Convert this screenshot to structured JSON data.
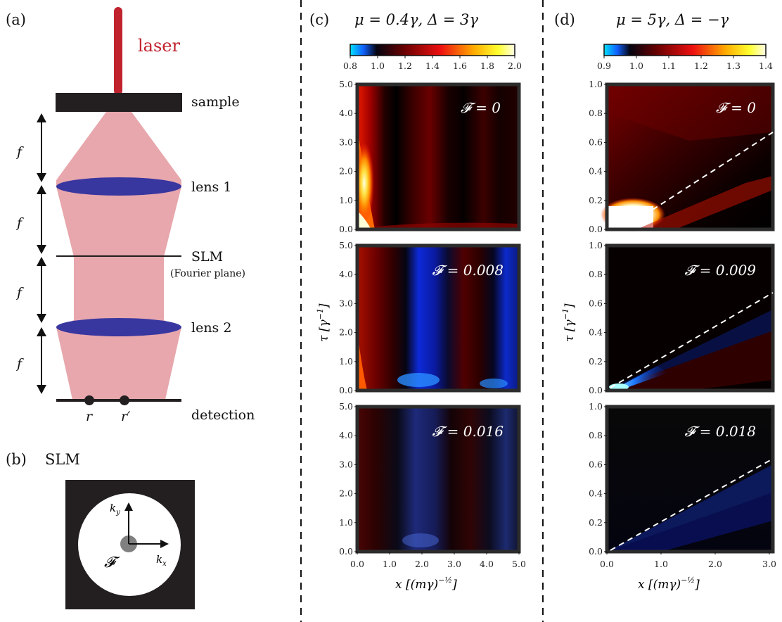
{
  "panel_a": {
    "letter": "(a)",
    "laser_label": "laser",
    "sample_label": "sample",
    "lens1_label": "lens 1",
    "slm_label": "SLM",
    "fourier_label": "(Fourier plane)",
    "lens2_label": "lens 2",
    "detection_label": "detection",
    "focal_label": "f",
    "r_label": "r",
    "rprime_label": "r′",
    "colors": {
      "laser": "#c0222e",
      "beam": "#e7a7ad",
      "lens": "#2e2f9e",
      "plate": "#231f20"
    }
  },
  "panel_b": {
    "letter": "(b)",
    "title": "SLM",
    "ky_label": "k",
    "ky_sub": "y",
    "kx_label": "k",
    "kx_sub": "x",
    "filter_label": "𝓕"
  },
  "panel_c": {
    "letter": "(c)",
    "title": "μ = 0.4γ,  Δ = 3γ",
    "colorbar_ticks": [
      "0.8",
      "1.0",
      "1.2",
      "1.4",
      "1.6",
      "1.8",
      "2.0"
    ],
    "y_ticks": [
      "0.0",
      "1.0",
      "2.0",
      "3.0",
      "4.0",
      "5.0"
    ],
    "x_ticks": [
      "0.0",
      "1.0",
      "2.0",
      "3.0",
      "4.0",
      "5.0"
    ],
    "xlabel": "x [(mγ)",
    "xlabel_exp": "−½",
    "xlabel_close": "]",
    "ylabel": "τ [γ",
    "ylabel_exp": "−1",
    "ylabel_close": "]",
    "panels": [
      "𝓕 = 0",
      "𝓕 = 0.008",
      "𝓕 = 0.016"
    ]
  },
  "panel_d": {
    "letter": "(d)",
    "title": "μ = 5γ,  Δ = −γ",
    "colorbar_ticks": [
      "0.9",
      "1.0",
      "1.1",
      "1.2",
      "1.3",
      "1.4"
    ],
    "y_ticks": [
      "0.0",
      "0.2",
      "0.4",
      "0.6",
      "0.8",
      "1.0"
    ],
    "x_ticks": [
      "0.0",
      "1.0",
      "2.0",
      "3.0"
    ],
    "xlabel": "x [(mγ)",
    "xlabel_exp": "−½",
    "xlabel_close": "]",
    "ylabel": "τ [γ",
    "ylabel_exp": "−1",
    "ylabel_close": "]",
    "panels": [
      "𝓕 = 0",
      "𝓕 = 0.009",
      "𝓕 = 0.018"
    ]
  },
  "chart_data": [
    {
      "type": "heatmap",
      "panel": "(c)",
      "title": "μ = 0.4γ,  Δ = 3γ",
      "colorbar_range": [
        0.8,
        2.0
      ],
      "xlim": [
        0.0,
        5.0
      ],
      "ylim": [
        0.0,
        5.0
      ],
      "subplots": [
        "𝓕 = 0",
        "𝓕 = 0.008",
        "𝓕 = 0.016"
      ]
    },
    {
      "type": "heatmap",
      "panel": "(d)",
      "title": "μ = 5γ,  Δ = −γ",
      "colorbar_range": [
        0.9,
        1.4
      ],
      "xlim": [
        0.0,
        3.0
      ],
      "ylim": [
        0.0,
        1.0
      ],
      "subplots": [
        "𝓕 = 0",
        "𝓕 = 0.009",
        "𝓕 = 0.018"
      ]
    }
  ]
}
